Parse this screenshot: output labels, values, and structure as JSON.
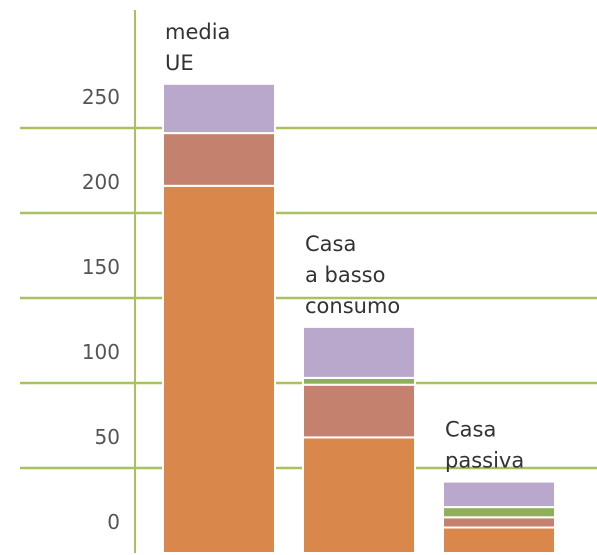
{
  "chart_data": {
    "type": "stacked_bar",
    "categories": [
      "media\nUE",
      "Casa\na basso\nconsumo",
      "Casa\npassiva"
    ],
    "series": [
      {
        "color": "#d9874a",
        "values": [
          216,
          68,
          15
        ]
      },
      {
        "color": "#c4826e",
        "values": [
          31,
          31,
          6
        ]
      },
      {
        "color": "#8fb05a",
        "values": [
          null,
          4,
          6
        ]
      },
      {
        "color": "#b9a8cc",
        "values": [
          29,
          30,
          15
        ]
      }
    ],
    "ylim": [
      0,
      320
    ],
    "yticks": [
      0,
      50,
      100,
      150,
      200,
      250
    ],
    "grid": true,
    "grid_color": "#a9c25f"
  }
}
